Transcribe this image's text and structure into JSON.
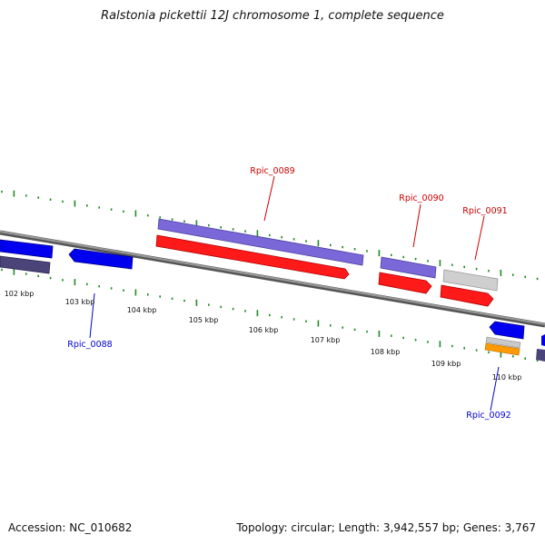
{
  "title": "Ralstonia pickettii 12J chromosome 1, complete sequence",
  "accession": "Accession: NC_010682",
  "summary": "Topology: circular; Length: 3,942,557 bp; Genes: 3,767",
  "ticks": [
    "102 kbp",
    "103 kbp",
    "104 kbp",
    "105 kbp",
    "106 kbp",
    "107 kbp",
    "108 kbp",
    "109 kbp",
    "110 kbp"
  ],
  "gene_labels": [
    {
      "name": "Rpic_0088",
      "strand": "minus",
      "color": "#0000cc"
    },
    {
      "name": "Rpic_0089",
      "strand": "plus",
      "color": "#cc0000"
    },
    {
      "name": "Rpic_0090",
      "strand": "plus",
      "color": "#cc0000"
    },
    {
      "name": "Rpic_0091",
      "strand": "plus",
      "color": "#cc0000"
    },
    {
      "name": "Rpic_0092",
      "strand": "minus",
      "color": "#0000cc"
    }
  ],
  "colors": {
    "cds_plus": "#ff0000",
    "cds_minus": "#0000ee",
    "gene_plus": "#7b68d8",
    "gene_minus": "#4a4478",
    "pseudo": "#c8c8c8",
    "rna": "#ff9900",
    "backbone": "#808080",
    "gc_marks": "#228822"
  }
}
